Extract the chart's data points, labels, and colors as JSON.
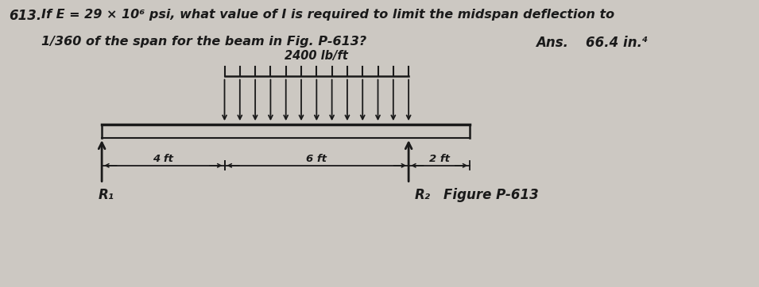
{
  "title_number": "613.",
  "question_line1": "If E = 29 × 10⁶ psi, what value of I is required to limit the midspan deflection to",
  "question_line2": "1/360 of the span for the beam in Fig. P-613?",
  "ans_label": "Ans.",
  "ans_value": "66.4 in.⁴",
  "load_label": "2400 lb/ft",
  "dim_left": "4 ft",
  "dim_mid": "6 ft",
  "dim_right": "2 ft",
  "r1_label": "R₁",
  "r2_label": "R₂",
  "figure_label": "Figure P-613",
  "bg_color": "#ccc8c2",
  "text_color": "#1a1a1a",
  "beam_color": "#1a1a1a"
}
